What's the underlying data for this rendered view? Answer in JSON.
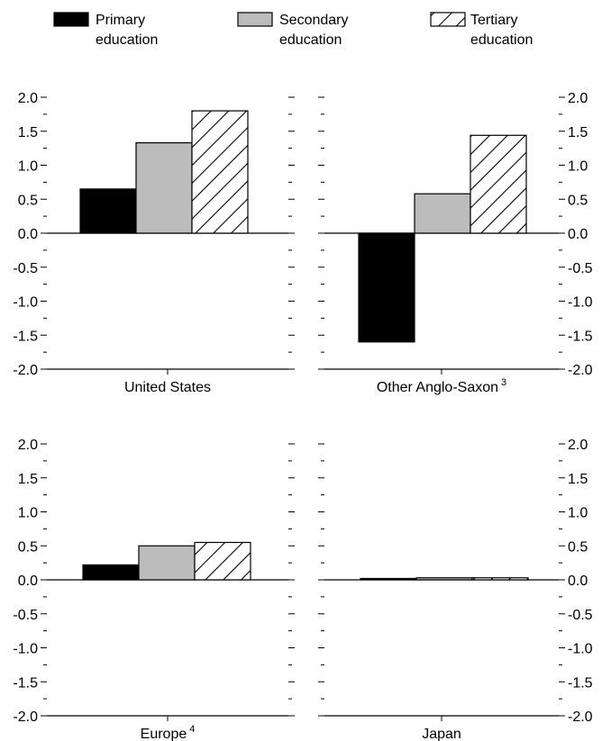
{
  "chart_data": {
    "type": "bar",
    "legend": {
      "placement": "top",
      "items": [
        {
          "key": "primary",
          "line1": "Primary",
          "line2": "education",
          "pattern": "solid-black"
        },
        {
          "key": "secondary",
          "line1": "Secondary",
          "line2": "education",
          "pattern": "solid-gray"
        },
        {
          "key": "tertiary",
          "line1": "Tertiary",
          "line2": "education",
          "pattern": "hatched"
        }
      ]
    },
    "ylim": [
      -2.0,
      2.0
    ],
    "yticks": [
      2.0,
      1.5,
      1.0,
      0.5,
      0.0,
      -0.5,
      -1.0,
      -1.5,
      -2.0
    ],
    "ytick_labels": [
      "2.0",
      "1.5",
      "1.0",
      "0.5",
      "0.0",
      "-0.5",
      "-1.0",
      "-1.5",
      "-2.0"
    ],
    "series_names": [
      "Primary education",
      "Secondary education",
      "Tertiary education"
    ],
    "colors": {
      "primary": "#000000",
      "secondary": "#bcbcbc",
      "tertiary": "#ffffff"
    },
    "panels": [
      {
        "label": "United States",
        "footnote": "",
        "values": [
          0.65,
          1.33,
          1.8
        ]
      },
      {
        "label": "Other Anglo-Saxon",
        "footnote": "3",
        "values": [
          -1.6,
          0.58,
          1.44
        ]
      },
      {
        "label": "Europe",
        "footnote": "4",
        "values": [
          0.22,
          0.5,
          0.55
        ]
      },
      {
        "label": "Japan",
        "footnote": "",
        "values": [
          0.02,
          0.03,
          0.03
        ]
      }
    ]
  }
}
